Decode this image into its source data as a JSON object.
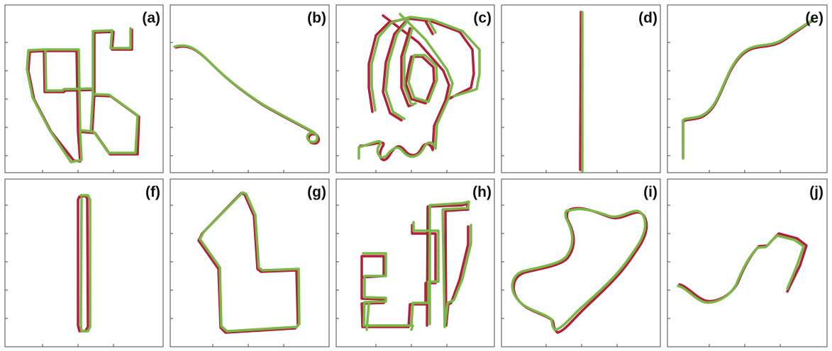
{
  "colors": {
    "ground_truth": "#b0203a",
    "estimate": "#7ab648"
  },
  "panels": [
    {
      "label": "(a)"
    },
    {
      "label": "(b)"
    },
    {
      "label": "(c)"
    },
    {
      "label": "(d)"
    },
    {
      "label": "(e)"
    },
    {
      "label": "(f)"
    },
    {
      "label": "(g)"
    },
    {
      "label": "(h)"
    },
    {
      "label": "(i)"
    },
    {
      "label": "(j)"
    }
  ]
}
